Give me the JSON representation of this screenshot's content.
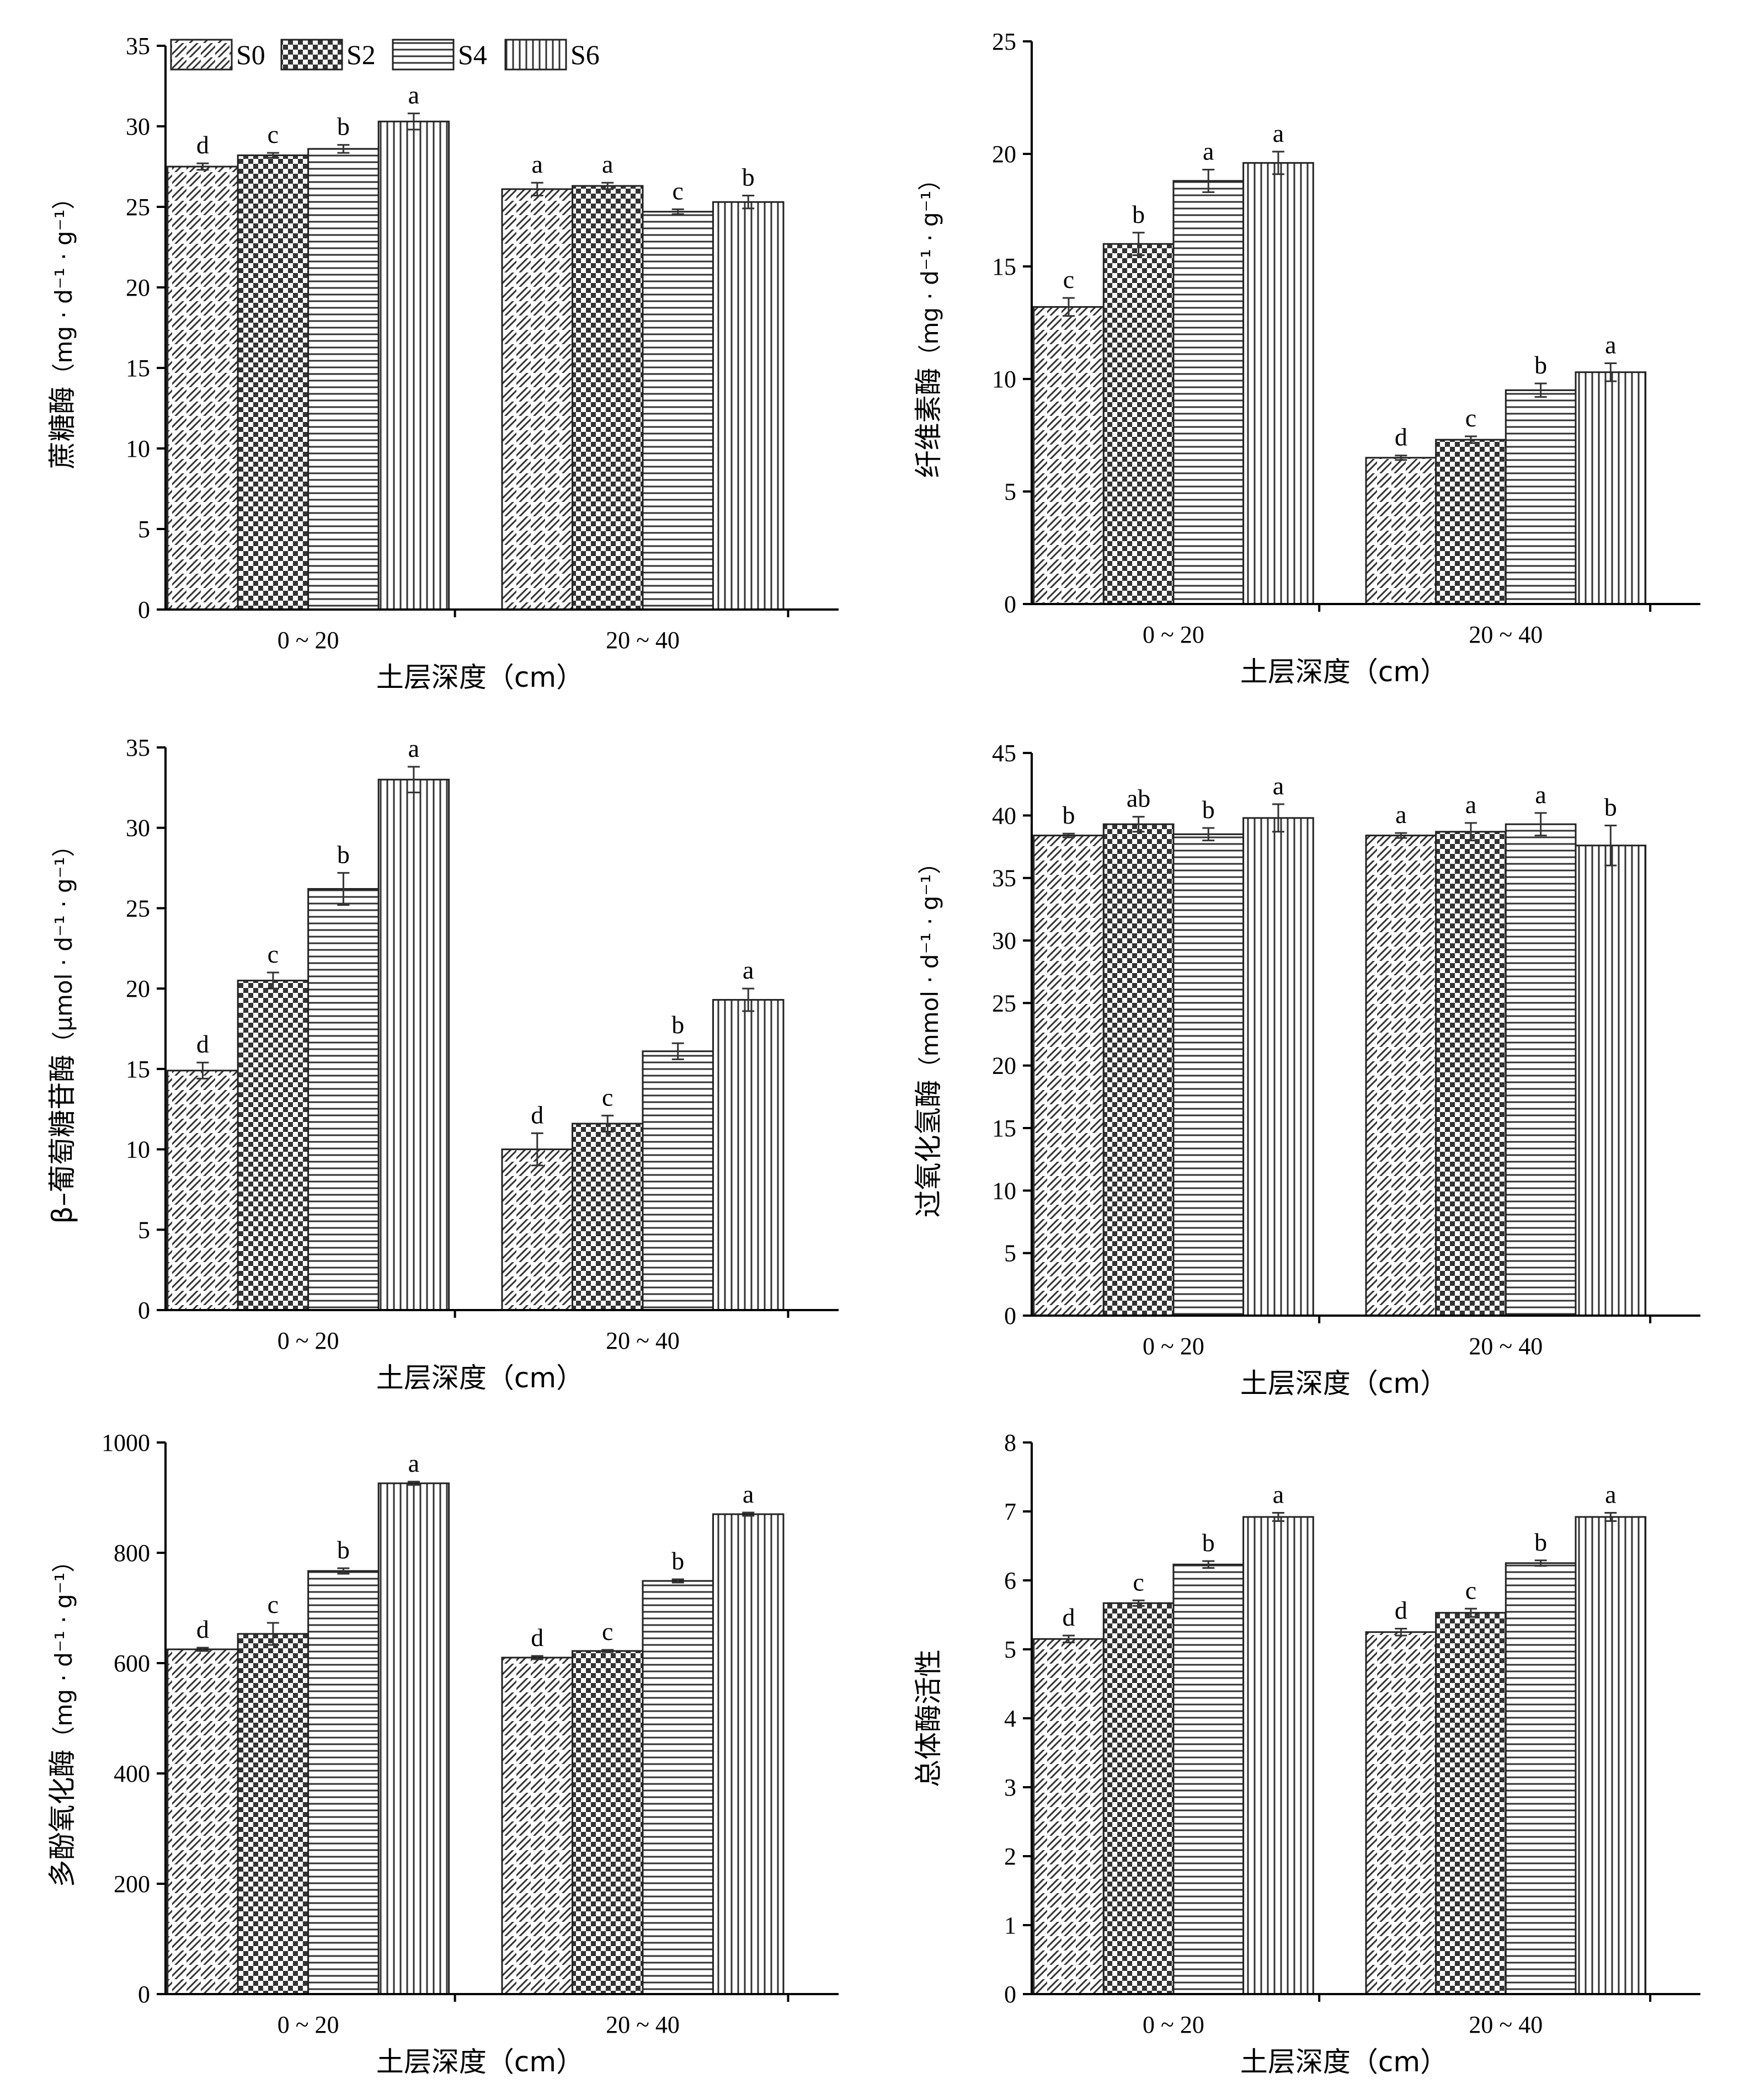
{
  "legend": [
    {
      "name": "S0",
      "pattern": "diag"
    },
    {
      "name": "S2",
      "pattern": "check"
    },
    {
      "name": "S4",
      "pattern": "hlines"
    },
    {
      "name": "S6",
      "pattern": "vlines"
    }
  ],
  "colors": {
    "ink": "#000000",
    "hatch": "#333333",
    "background": "#ffffff"
  },
  "chart_data": [
    {
      "type": "bar",
      "ylabel_name": "蔗糖酶",
      "ylabel_unit": "（mg · d⁻¹ · g⁻¹）",
      "xlabel": "土层深度（cm）",
      "categories": [
        "0 ~ 20",
        "20 ~ 40"
      ],
      "ylim": [
        0,
        35
      ],
      "yticks": [
        0,
        5,
        10,
        15,
        20,
        25,
        30,
        35
      ],
      "legend": "top-left",
      "series": [
        {
          "name": "S0",
          "values": [
            27.5,
            26.1
          ],
          "errors": [
            0.2,
            0.4
          ],
          "letters": [
            "d",
            "a"
          ]
        },
        {
          "name": "S2",
          "values": [
            28.2,
            26.3
          ],
          "errors": [
            0.15,
            0.2
          ],
          "letters": [
            "c",
            "a"
          ]
        },
        {
          "name": "S4",
          "values": [
            28.6,
            24.7
          ],
          "errors": [
            0.25,
            0.15
          ],
          "letters": [
            "b",
            "c"
          ]
        },
        {
          "name": "S6",
          "values": [
            30.3,
            25.3
          ],
          "errors": [
            0.5,
            0.4
          ],
          "letters": [
            "a",
            "b"
          ]
        }
      ]
    },
    {
      "type": "bar",
      "ylabel_name": "纤维素酶",
      "ylabel_unit": "（mg · d⁻¹ · g⁻¹）",
      "xlabel": "土层深度（cm）",
      "categories": [
        "0 ~ 20",
        "20 ~ 40"
      ],
      "ylim": [
        0,
        25
      ],
      "yticks": [
        0,
        5,
        10,
        15,
        20,
        25
      ],
      "series": [
        {
          "name": "S0",
          "values": [
            13.2,
            6.5
          ],
          "errors": [
            0.4,
            0.1
          ],
          "letters": [
            "c",
            "d"
          ]
        },
        {
          "name": "S2",
          "values": [
            16.0,
            7.3
          ],
          "errors": [
            0.5,
            0.15
          ],
          "letters": [
            "b",
            "c"
          ]
        },
        {
          "name": "S4",
          "values": [
            18.8,
            9.5
          ],
          "errors": [
            0.5,
            0.3
          ],
          "letters": [
            "a",
            "b"
          ]
        },
        {
          "name": "S6",
          "values": [
            19.6,
            10.3
          ],
          "errors": [
            0.5,
            0.4
          ],
          "letters": [
            "a",
            "a"
          ]
        }
      ]
    },
    {
      "type": "bar",
      "ylabel_name": "β–葡萄糖苷酶",
      "ylabel_unit": "（μmol · d⁻¹ · g⁻¹）",
      "xlabel": "土层深度（cm）",
      "categories": [
        "0 ~ 20",
        "20 ~ 40"
      ],
      "ylim": [
        0,
        35
      ],
      "yticks": [
        0,
        5,
        10,
        15,
        20,
        25,
        30,
        35
      ],
      "series": [
        {
          "name": "S0",
          "values": [
            14.9,
            10.0
          ],
          "errors": [
            0.5,
            1.0
          ],
          "letters": [
            "d",
            "d"
          ]
        },
        {
          "name": "S2",
          "values": [
            20.5,
            11.6
          ],
          "errors": [
            0.5,
            0.5
          ],
          "letters": [
            "c",
            "c"
          ]
        },
        {
          "name": "S4",
          "values": [
            26.2,
            16.1
          ],
          "errors": [
            1.0,
            0.5
          ],
          "letters": [
            "b",
            "b"
          ]
        },
        {
          "name": "S6",
          "values": [
            33.0,
            19.3
          ],
          "errors": [
            0.8,
            0.7
          ],
          "letters": [
            "a",
            "a"
          ]
        }
      ]
    },
    {
      "type": "bar",
      "ylabel_name": "过氧化氢酶",
      "ylabel_unit": "（mmol · d⁻¹ · g⁻¹）",
      "xlabel": "土层深度（cm）",
      "categories": [
        "0 ~ 20",
        "20 ~ 40"
      ],
      "ylim": [
        0,
        45
      ],
      "yticks": [
        0,
        5,
        10,
        15,
        20,
        25,
        30,
        35,
        40,
        45
      ],
      "series": [
        {
          "name": "S0",
          "values": [
            38.4,
            38.4
          ],
          "errors": [
            0.15,
            0.2
          ],
          "letters": [
            "b",
            "a"
          ]
        },
        {
          "name": "S2",
          "values": [
            39.3,
            38.7
          ],
          "errors": [
            0.6,
            0.7
          ],
          "letters": [
            "ab",
            "a"
          ]
        },
        {
          "name": "S4",
          "values": [
            38.5,
            39.3
          ],
          "errors": [
            0.5,
            0.9
          ],
          "letters": [
            "b",
            "a"
          ]
        },
        {
          "name": "S6",
          "values": [
            39.8,
            37.6
          ],
          "errors": [
            1.1,
            1.6
          ],
          "letters": [
            "a",
            "b"
          ]
        }
      ]
    },
    {
      "type": "bar",
      "ylabel_name": "多酚氧化酶",
      "ylabel_unit": "（mg · d⁻¹ · g⁻¹）",
      "xlabel": "土层深度（cm）",
      "categories": [
        "0 ~ 20",
        "20 ~ 40"
      ],
      "ylim": [
        0,
        1000
      ],
      "yticks": [
        0,
        200,
        400,
        600,
        800,
        1000
      ],
      "series": [
        {
          "name": "S0",
          "values": [
            625,
            610
          ],
          "errors": [
            3,
            3
          ],
          "letters": [
            "d",
            "d"
          ]
        },
        {
          "name": "S2",
          "values": [
            653,
            622
          ],
          "errors": [
            20,
            2
          ],
          "letters": [
            "c",
            "c"
          ]
        },
        {
          "name": "S4",
          "values": [
            767,
            749
          ],
          "errors": [
            5,
            3
          ],
          "letters": [
            "b",
            "b"
          ]
        },
        {
          "name": "S6",
          "values": [
            926,
            870
          ],
          "errors": [
            3,
            3
          ],
          "letters": [
            "a",
            "a"
          ]
        }
      ]
    },
    {
      "type": "bar",
      "ylabel_name": "总体酶活性",
      "ylabel_unit": "",
      "xlabel": "土层深度（cm）",
      "categories": [
        "0 ~ 20",
        "20 ~ 40"
      ],
      "ylim": [
        0,
        8
      ],
      "yticks": [
        0,
        1,
        2,
        3,
        4,
        5,
        6,
        7,
        8
      ],
      "series": [
        {
          "name": "S0",
          "values": [
            5.15,
            5.25
          ],
          "errors": [
            0.05,
            0.05
          ],
          "letters": [
            "d",
            "d"
          ]
        },
        {
          "name": "S2",
          "values": [
            5.67,
            5.53
          ],
          "errors": [
            0.04,
            0.06
          ],
          "letters": [
            "c",
            "c"
          ]
        },
        {
          "name": "S4",
          "values": [
            6.23,
            6.25
          ],
          "errors": [
            0.05,
            0.04
          ],
          "letters": [
            "b",
            "b"
          ]
        },
        {
          "name": "S6",
          "values": [
            6.92,
            6.92
          ],
          "errors": [
            0.06,
            0.06
          ],
          "letters": [
            "a",
            "a"
          ]
        }
      ]
    }
  ]
}
